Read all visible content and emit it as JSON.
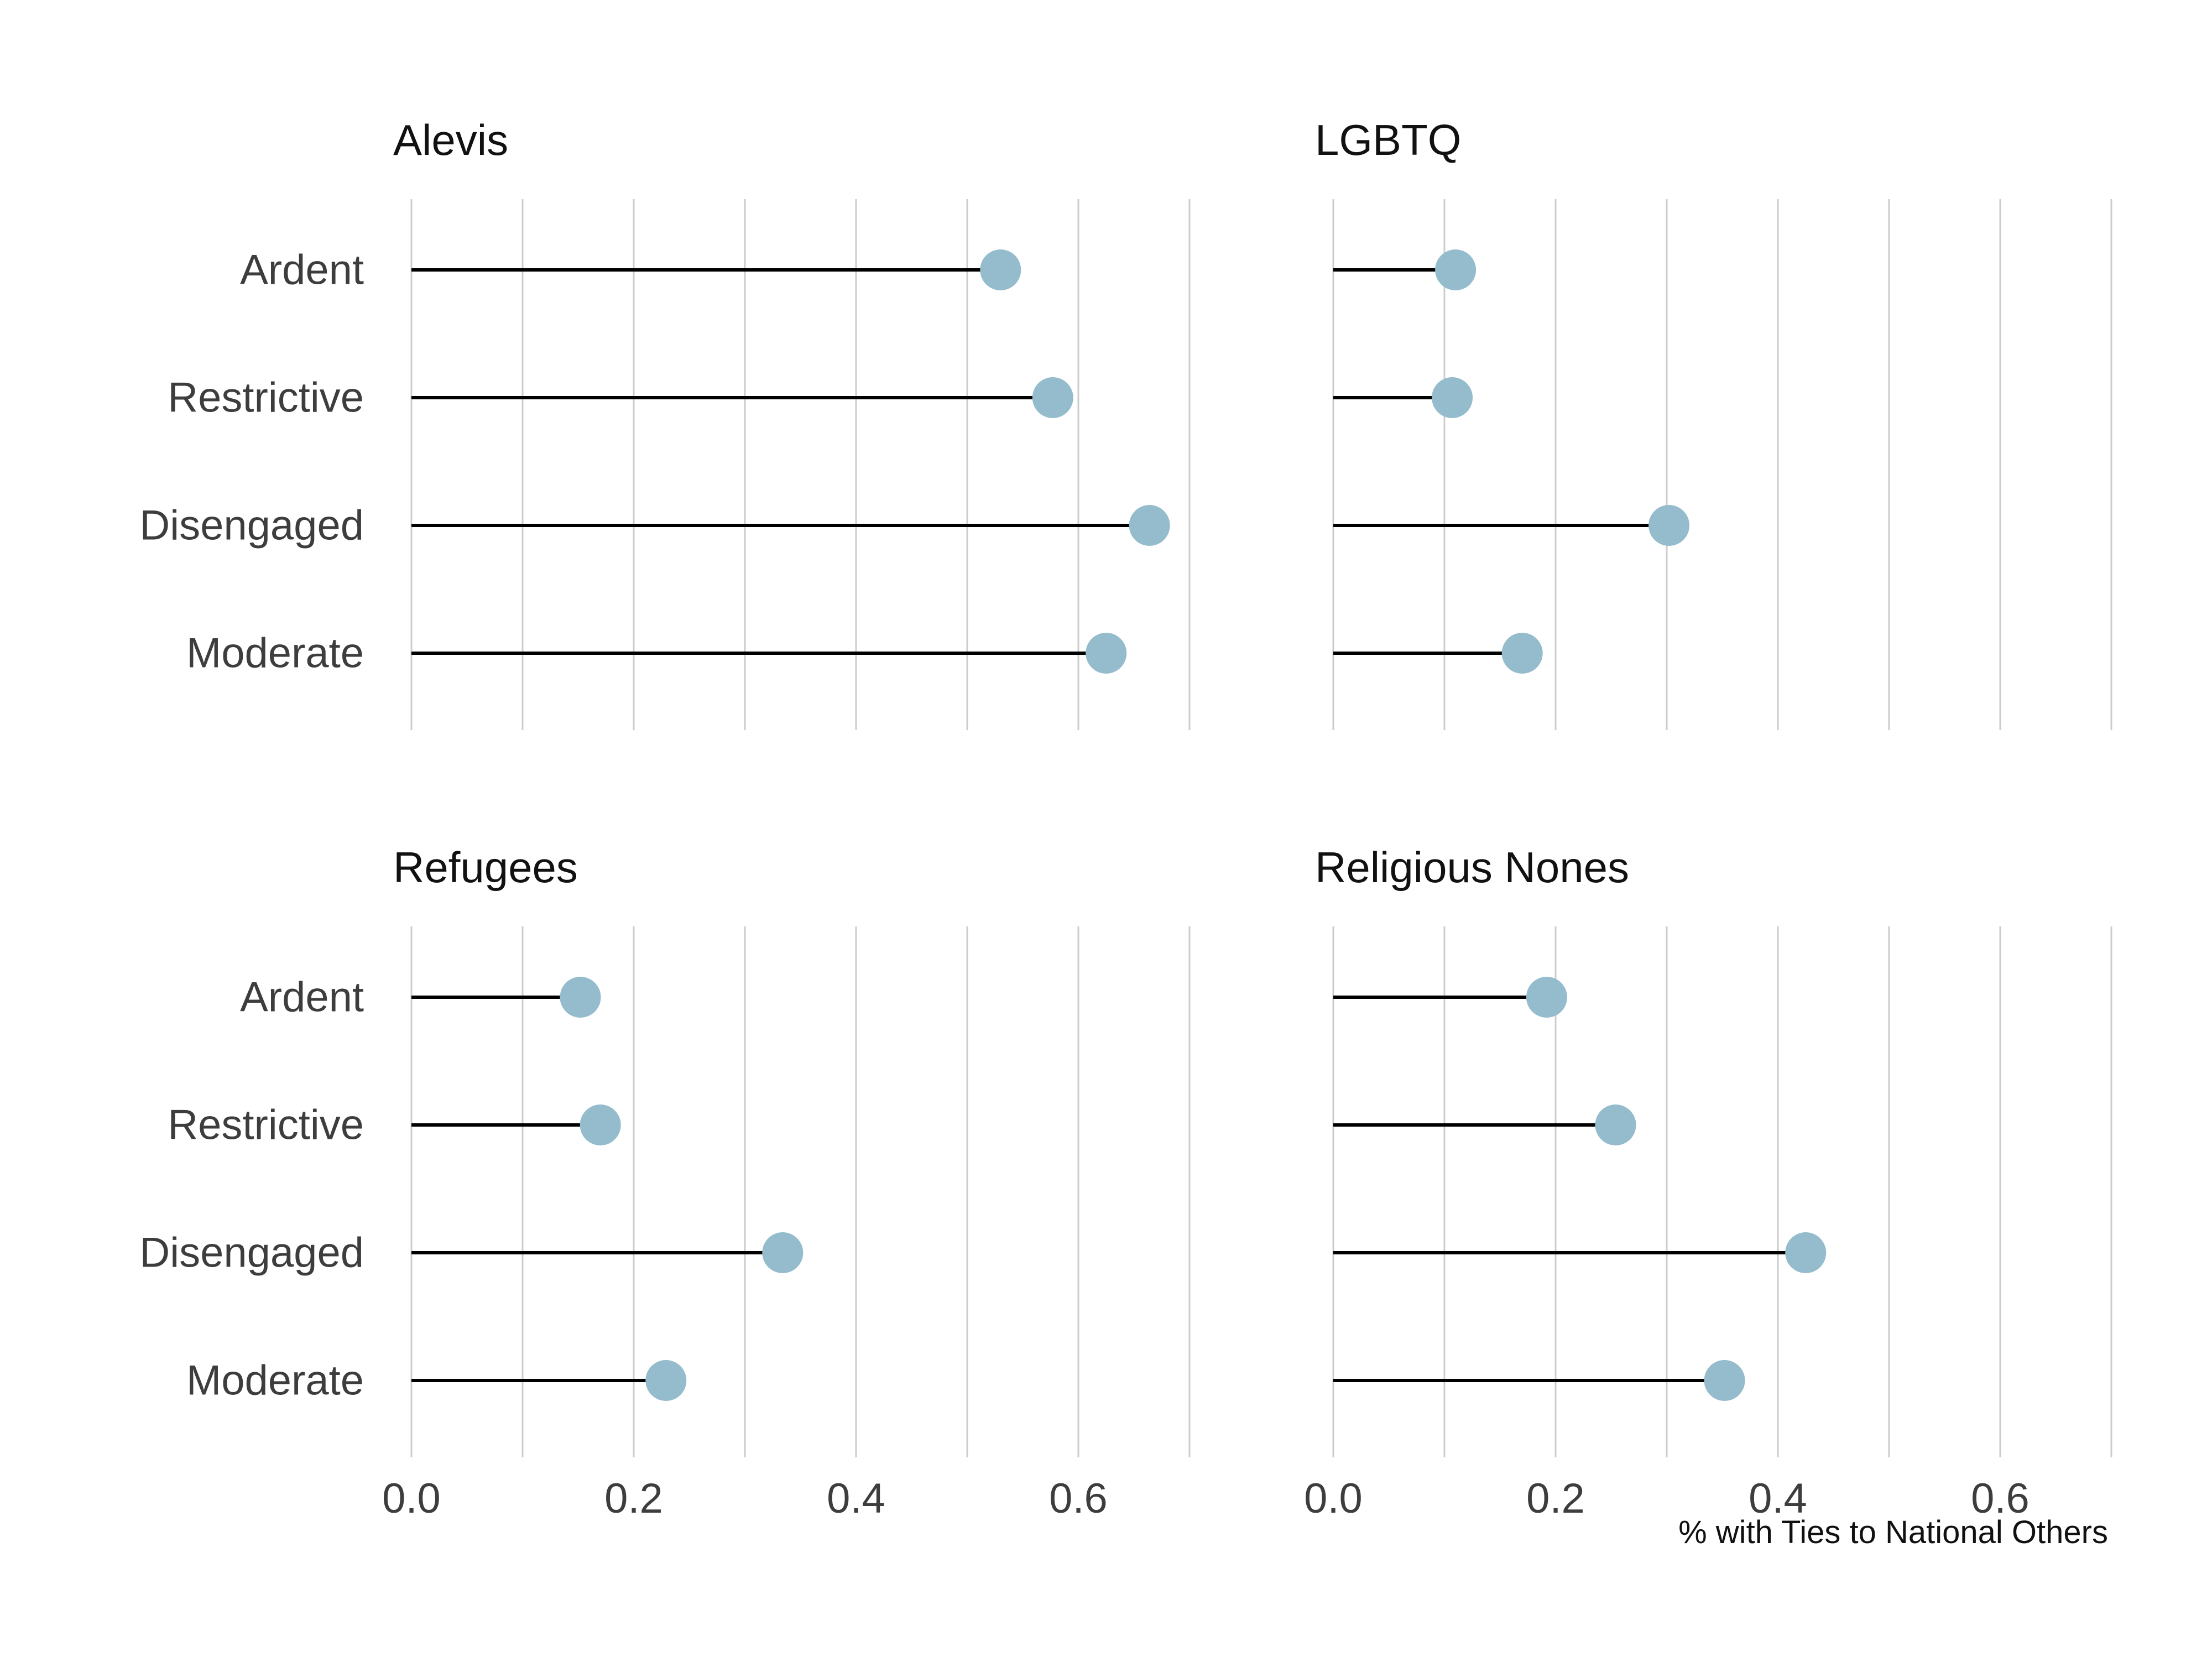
{
  "chart_data": {
    "type": "lollipop",
    "colors": {
      "dot": "#95bccc",
      "stem": "#000000",
      "grid": "#cccccc"
    },
    "categories": [
      "Ardent",
      "Restrictive",
      "Disengaged",
      "Moderate"
    ],
    "xlabel": "% with Ties to National Others",
    "xlim": [
      0,
      0.7
    ],
    "xticks": [
      0.0,
      0.2,
      0.4,
      0.6
    ],
    "xtick_labels": [
      "0.0",
      "0.2",
      "0.4",
      "0.6"
    ],
    "grid": "vertical",
    "panels": [
      {
        "title": "Alevis",
        "values": [
          0.53,
          0.577,
          0.664,
          0.625
        ]
      },
      {
        "title": "LGBTQ",
        "values": [
          0.11,
          0.107,
          0.302,
          0.17
        ]
      },
      {
        "title": "Refugees",
        "values": [
          0.152,
          0.17,
          0.334,
          0.229
        ]
      },
      {
        "title": "Religious Nones",
        "values": [
          0.192,
          0.254,
          0.425,
          0.352
        ]
      }
    ]
  }
}
